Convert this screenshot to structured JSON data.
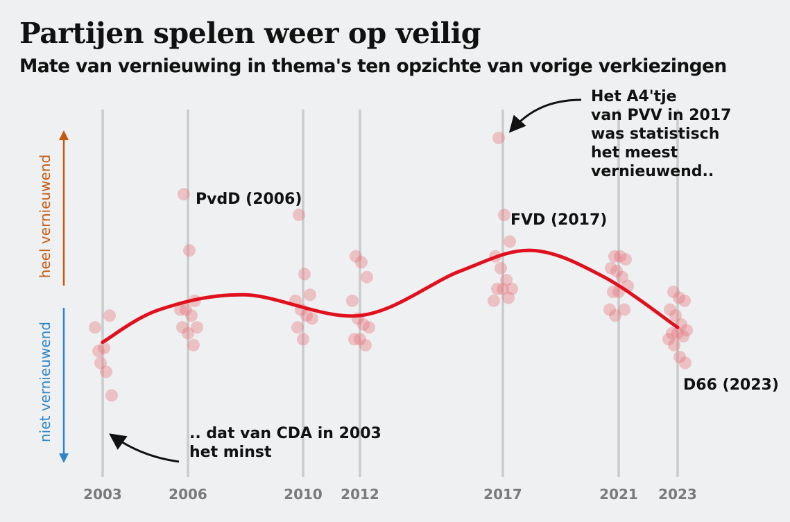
{
  "title": "Partijen spelen weer op veilig",
  "subtitle": "Mate van vernieuwing in thema's ten opzichte van vorige verkiezingen",
  "axis": {
    "up_label": "heel vernieuwend",
    "down_label": "niet vernieuwend",
    "up_color": "#c45a12",
    "down_color": "#2e86c8"
  },
  "annotations": {
    "pvv": [
      "Het A4'tje",
      "van PVV in 2017",
      "was statistisch",
      "het meest",
      "vernieuwend.."
    ],
    "cda": [
      ".. dat van CDA in 2003",
      "het minst"
    ],
    "pvdd": "PvdD (2006)",
    "fvd": "FVD (2017)",
    "d66": "D66 (2023)"
  },
  "colors": {
    "point": "#e8737b",
    "trend": "#e0101e",
    "gridline": "#c9cbcc",
    "tick": "#7a7a7a"
  },
  "chart_data": {
    "type": "scatter",
    "title": "Partijen spelen weer op veilig",
    "subtitle": "Mate van vernieuwing in thema's ten opzichte van vorige verkiezingen",
    "x_ticks": [
      2003,
      2006,
      2010,
      2012,
      2017,
      2021,
      2023
    ],
    "y_scale": "relative novelty (unitless)",
    "ylim": [
      0,
      100
    ],
    "points": [
      {
        "x": 2003,
        "y": 28
      },
      {
        "x": 2003,
        "y": 29
      },
      {
        "x": 2003,
        "y": 40
      },
      {
        "x": 2003,
        "y": 36
      },
      {
        "x": 2003,
        "y": 24
      },
      {
        "x": 2003,
        "y": 21
      },
      {
        "x": 2003,
        "y": 13
      },
      {
        "x": 2006,
        "y": 81
      },
      {
        "x": 2006,
        "y": 62
      },
      {
        "x": 2006,
        "y": 45
      },
      {
        "x": 2006,
        "y": 42
      },
      {
        "x": 2006,
        "y": 42
      },
      {
        "x": 2006,
        "y": 40
      },
      {
        "x": 2006,
        "y": 36
      },
      {
        "x": 2006,
        "y": 36
      },
      {
        "x": 2006,
        "y": 34
      },
      {
        "x": 2006,
        "y": 30
      },
      {
        "x": 2010,
        "y": 74
      },
      {
        "x": 2010,
        "y": 54
      },
      {
        "x": 2010,
        "y": 47
      },
      {
        "x": 2010,
        "y": 45
      },
      {
        "x": 2010,
        "y": 42
      },
      {
        "x": 2010,
        "y": 40
      },
      {
        "x": 2010,
        "y": 39
      },
      {
        "x": 2010,
        "y": 36
      },
      {
        "x": 2010,
        "y": 32
      },
      {
        "x": 2012,
        "y": 60
      },
      {
        "x": 2012,
        "y": 58
      },
      {
        "x": 2012,
        "y": 53
      },
      {
        "x": 2012,
        "y": 45
      },
      {
        "x": 2012,
        "y": 39
      },
      {
        "x": 2012,
        "y": 37
      },
      {
        "x": 2012,
        "y": 36
      },
      {
        "x": 2012,
        "y": 32
      },
      {
        "x": 2012,
        "y": 32
      },
      {
        "x": 2012,
        "y": 30
      },
      {
        "x": 2017,
        "y": 100
      },
      {
        "x": 2017,
        "y": 74
      },
      {
        "x": 2017,
        "y": 65
      },
      {
        "x": 2017,
        "y": 60
      },
      {
        "x": 2017,
        "y": 56
      },
      {
        "x": 2017,
        "y": 52
      },
      {
        "x": 2017,
        "y": 49
      },
      {
        "x": 2017,
        "y": 49
      },
      {
        "x": 2017,
        "y": 49
      },
      {
        "x": 2017,
        "y": 46
      },
      {
        "x": 2017,
        "y": 45
      },
      {
        "x": 2021,
        "y": 60
      },
      {
        "x": 2021,
        "y": 60
      },
      {
        "x": 2021,
        "y": 59
      },
      {
        "x": 2021,
        "y": 56
      },
      {
        "x": 2021,
        "y": 55
      },
      {
        "x": 2021,
        "y": 53
      },
      {
        "x": 2021,
        "y": 50
      },
      {
        "x": 2021,
        "y": 48
      },
      {
        "x": 2021,
        "y": 48
      },
      {
        "x": 2021,
        "y": 42
      },
      {
        "x": 2021,
        "y": 42
      },
      {
        "x": 2021,
        "y": 40
      },
      {
        "x": 2023,
        "y": 48
      },
      {
        "x": 2023,
        "y": 46
      },
      {
        "x": 2023,
        "y": 45
      },
      {
        "x": 2023,
        "y": 42
      },
      {
        "x": 2023,
        "y": 40
      },
      {
        "x": 2023,
        "y": 37
      },
      {
        "x": 2023,
        "y": 35
      },
      {
        "x": 2023,
        "y": 34
      },
      {
        "x": 2023,
        "y": 34
      },
      {
        "x": 2023,
        "y": 33
      },
      {
        "x": 2023,
        "y": 32
      },
      {
        "x": 2023,
        "y": 30
      },
      {
        "x": 2023,
        "y": 26
      },
      {
        "x": 2023,
        "y": 24
      }
    ],
    "trend": [
      {
        "x": 2003,
        "y": 31
      },
      {
        "x": 2005,
        "y": 42
      },
      {
        "x": 2008,
        "y": 47
      },
      {
        "x": 2012,
        "y": 40
      },
      {
        "x": 2015.5,
        "y": 55
      },
      {
        "x": 2018,
        "y": 62
      },
      {
        "x": 2020.5,
        "y": 53
      },
      {
        "x": 2023,
        "y": 36
      }
    ]
  }
}
